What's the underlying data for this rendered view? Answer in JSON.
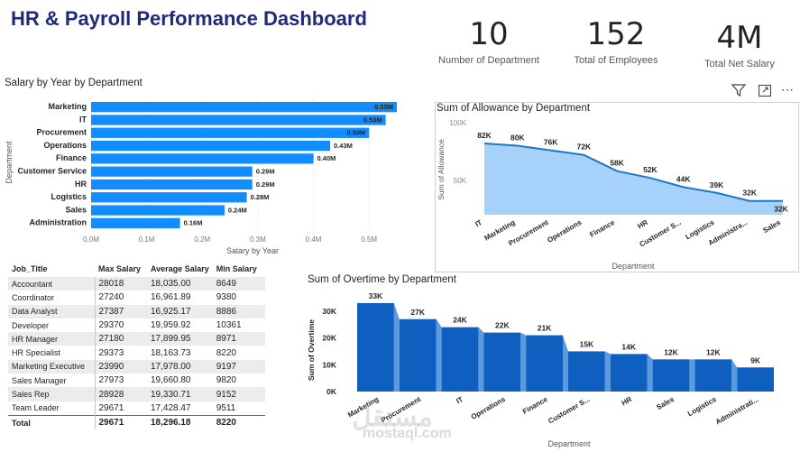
{
  "header": {
    "title": "HR & Payroll Performance Dashboard"
  },
  "kpis": [
    {
      "value": "10",
      "label": "Number of Department"
    },
    {
      "value": "152",
      "label": "Total of Employees"
    },
    {
      "value": "4M",
      "label": "Total Net Salary"
    }
  ],
  "icons": {
    "filter": "filter-icon",
    "focus": "focus-mode-icon",
    "more": "more-options-icon"
  },
  "watermark": {
    "arabic": "مستقل",
    "latin": "mostaql.com"
  },
  "colors": {
    "bar": "#118dff",
    "area_fill": "#a6d1fa",
    "area_line": "#1f77c4",
    "waterfall": "#0f5fc0",
    "title": "#1f2a7a"
  },
  "salary_table": {
    "headers": [
      "Job_Title",
      "Max Salary",
      "Average Salary",
      "Min Salary"
    ],
    "rows": [
      [
        "Accountant",
        "28018",
        "18,035.00",
        "8649"
      ],
      [
        "Coordinator",
        "27240",
        "16,961.89",
        "9380"
      ],
      [
        "Data Analyst",
        "27387",
        "16,925.17",
        "8886"
      ],
      [
        "Developer",
        "29370",
        "19,959.92",
        "10361"
      ],
      [
        "HR Manager",
        "27180",
        "17,899.95",
        "8971"
      ],
      [
        "HR Specialist",
        "29373",
        "18,163.73",
        "8220"
      ],
      [
        "Marketing Executive",
        "23990",
        "17,978.00",
        "9197"
      ],
      [
        "Sales Manager",
        "27973",
        "19,660.80",
        "9820"
      ],
      [
        "Sales Rep",
        "28928",
        "19,330.71",
        "9152"
      ],
      [
        "Team Leader",
        "29671",
        "17,428.47",
        "9511"
      ]
    ],
    "total": [
      "Total",
      "29671",
      "18,296.18",
      "8220"
    ]
  },
  "chart_data": [
    {
      "id": "salary",
      "type": "bar",
      "orientation": "horizontal",
      "title": "Salary by Year by Department",
      "xlabel": "Salary by Year",
      "ylabel": "Department",
      "categories": [
        "Marketing",
        "IT",
        "Procurement",
        "Operations",
        "Finance",
        "Customer Service",
        "HR",
        "Logistics",
        "Sales",
        "Administration"
      ],
      "values": [
        0.55,
        0.53,
        0.5,
        0.43,
        0.4,
        0.29,
        0.29,
        0.28,
        0.24,
        0.16
      ],
      "data_labels": [
        "0.55M",
        "0.53M",
        "0.50M",
        "0.43M",
        "0.40M",
        "0.29M",
        "0.29M",
        "0.28M",
        "0.24M",
        "0.16M"
      ],
      "ticks": [
        "0.0M",
        "0.1M",
        "0.2M",
        "0.3M",
        "0.4M",
        "0.5M"
      ],
      "xlim": [
        0,
        0.55
      ],
      "grid": true
    },
    {
      "id": "allowance",
      "type": "area",
      "title": "Sum of Allowance by Department",
      "xlabel": "Department",
      "ylabel": "Sum of Allowance",
      "categories": [
        "IT",
        "Marketing",
        "Procurement",
        "Operations",
        "Finance",
        "HR",
        "Customer S...",
        "Logistics",
        "Administra...",
        "Sales"
      ],
      "values": [
        82,
        80,
        76,
        72,
        58,
        52,
        44,
        39,
        32,
        32
      ],
      "data_labels": [
        "82K",
        "80K",
        "76K",
        "72K",
        "58K",
        "52K",
        "44K",
        "39K",
        "32K",
        "32K"
      ],
      "ticks": [
        "50K",
        "100K"
      ],
      "ylim": [
        20,
        100
      ]
    },
    {
      "id": "overtime",
      "type": "bar",
      "title": "Sum of Overtime by Department",
      "xlabel": "Department",
      "ylabel": "Sum of Overtime",
      "categories": [
        "Marketing",
        "Procurement",
        "IT",
        "Operations",
        "Finance",
        "Customer S...",
        "HR",
        "Sales",
        "Logistics",
        "Administrati..."
      ],
      "values": [
        33,
        27,
        24,
        22,
        21,
        15,
        14,
        12,
        12,
        9
      ],
      "data_labels": [
        "33K",
        "27K",
        "24K",
        "22K",
        "21K",
        "15K",
        "14K",
        "12K",
        "12K",
        "9K"
      ],
      "ticks": [
        "0K",
        "10K",
        "20K",
        "30K"
      ],
      "ylim": [
        0,
        35
      ]
    }
  ]
}
